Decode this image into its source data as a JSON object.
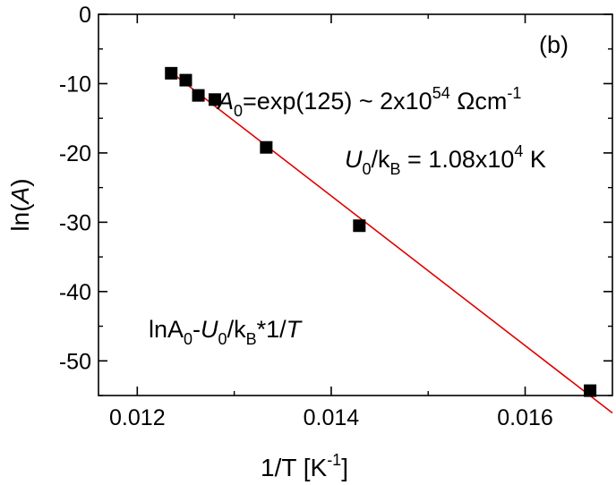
{
  "chart_data": {
    "type": "scatter",
    "panel_label": "(b)",
    "xlabel": {
      "text": "1/T [K",
      "sup": "-1",
      "close": "]"
    },
    "ylabel": {
      "prefix": "ln(",
      "var": "A",
      "suffix": ")"
    },
    "xlim": [
      0.0116,
      0.0169
    ],
    "ylim": [
      -55,
      0
    ],
    "xticks": [
      0.012,
      0.014,
      0.016
    ],
    "xtick_labels": [
      "0.012",
      "0.014",
      "0.016"
    ],
    "yticks": [
      0,
      -10,
      -20,
      -30,
      -40,
      -50
    ],
    "ytick_labels": [
      "0",
      "-10",
      "-20",
      "-30",
      "-40",
      "-50"
    ],
    "x_minor_step": 0.001,
    "y_minor_step": 5,
    "series": [
      {
        "name": "data",
        "marker": "square",
        "color": "#000000",
        "x": [
          0.01235,
          0.0125,
          0.01263,
          0.0128,
          0.01333,
          0.01429,
          0.01667
        ],
        "y": [
          -8.5,
          -9.5,
          -11.7,
          -12.3,
          -19.2,
          -30.5,
          -54.3
        ]
      }
    ],
    "fit": {
      "name": "linear fit",
      "color": "#e00000",
      "x_start": 0.01235,
      "x_end": 0.0169,
      "intercept": 125,
      "slope": -10800
    },
    "annotations": {
      "a0": {
        "var": "A",
        "sub": "0",
        "eq": "=exp(125) ~ 2x10",
        "exp": "54",
        "unit": " Ωcm",
        "unit_exp": "-1"
      },
      "u0": {
        "var": "U",
        "sub": "0",
        "slash": "/k",
        "sub2": "B",
        "eq": " = 1.08x10",
        "exp": "4",
        "unit": " K"
      },
      "formula": {
        "pre": "lnA",
        "sub": "0",
        "dash": "-",
        "var": "U",
        "sub2": "0",
        "slash": "/k",
        "sub3": "B",
        "mid": "*1/",
        "var2": "T"
      }
    }
  }
}
